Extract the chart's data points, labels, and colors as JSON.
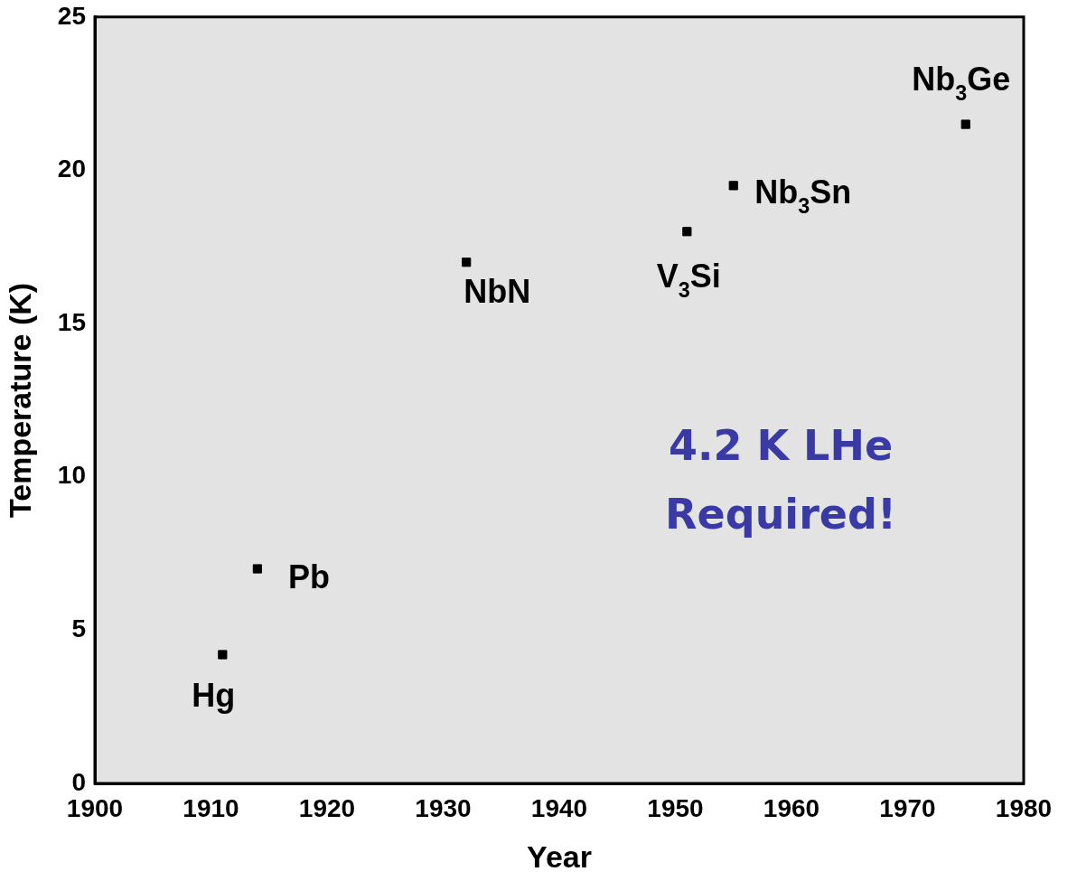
{
  "chart_data": {
    "type": "scatter",
    "xlabel": "Year",
    "ylabel": "Temperature (K)",
    "x": [
      1911,
      1914,
      1932,
      1951,
      1955,
      1975
    ],
    "values": [
      4.2,
      7.0,
      17.0,
      18.0,
      19.5,
      21.5
    ],
    "color": "#000000",
    "marker": "square",
    "grid": false,
    "legend": false,
    "xlim": [
      1900,
      1980
    ],
    "xticks": [
      1900,
      1910,
      1920,
      1930,
      1940,
      1950,
      1960,
      1970,
      1980
    ],
    "ylim": [
      0,
      25
    ],
    "yticks": [
      0,
      5,
      10,
      15,
      20,
      25
    ],
    "annotations": [
      {
        "text": "Hg",
        "x": 1911,
        "y": 4.2
      },
      {
        "text": "Pb",
        "x": 1914,
        "y": 7.0
      },
      {
        "text": "NbN",
        "x": 1932,
        "y": 17.0
      },
      {
        "text": "V$_{3}$Si",
        "x": 1951,
        "y": 18.0
      },
      {
        "text": "Nb$_{3}$Sn",
        "x": 1955,
        "y": 19.5
      },
      {
        "text": "Nb$_{3}$Ge",
        "x": 1975,
        "y": 21.5
      },
      "4.2 K LHe\nRequired!"
    ]
  }
}
